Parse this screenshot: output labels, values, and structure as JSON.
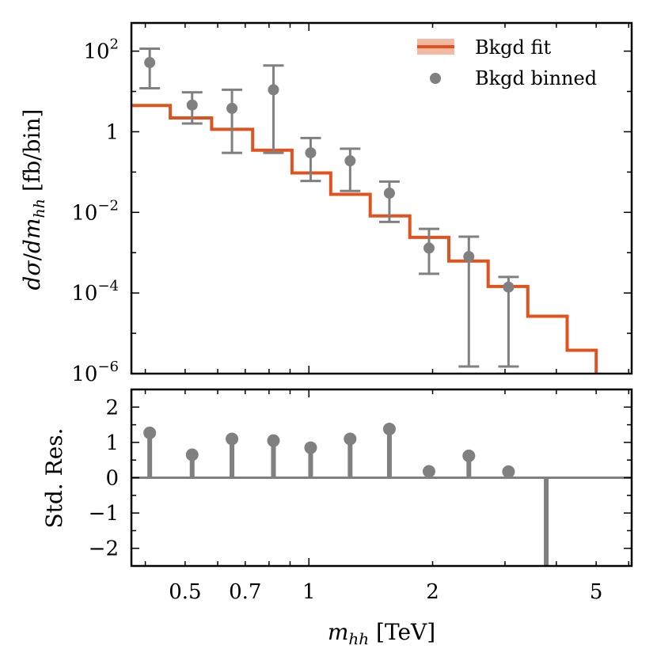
{
  "chart_data": [
    {
      "type": "step+errorbar",
      "panel": "upper",
      "ylabel_parts": [
        "d",
        "σ",
        "/",
        "d",
        "m",
        "hh",
        " [fb/bin]"
      ],
      "yscale": "log",
      "xscale": "log",
      "xlim": [
        0.37,
        6.1
      ],
      "ylim": [
        1e-06,
        500
      ],
      "yticks": [
        {
          "value": 100,
          "base": "10",
          "exp": "2"
        },
        {
          "value": 1,
          "base": "1",
          "exp": ""
        },
        {
          "value": 0.01,
          "base": "10",
          "exp": "−2"
        },
        {
          "value": 0.0001,
          "base": "10",
          "exp": "−4"
        },
        {
          "value": 1e-06,
          "base": "10",
          "exp": "−6"
        }
      ],
      "legend": {
        "position": "top-right",
        "entries": [
          {
            "label": "Bkgd fit",
            "kind": "line"
          },
          {
            "label": "Bkgd binned",
            "kind": "marker"
          }
        ]
      },
      "series": [
        {
          "name": "Bkgd fit",
          "kind": "step",
          "color": "#e0531f",
          "band_color": "#f4b9a3",
          "edges": [
            0.37,
            0.46,
            0.58,
            0.73,
            0.91,
            1.13,
            1.41,
            1.76,
            2.19,
            2.73,
            3.41,
            4.25,
            5.0
          ],
          "values": [
            4.5,
            2.2,
            1.15,
            0.35,
            0.095,
            0.028,
            0.0082,
            0.0024,
            0.00062,
            0.000145,
            2.65e-05,
            3.8e-06
          ]
        },
        {
          "name": "Bkgd binned",
          "kind": "errorbar",
          "color": "#808080",
          "points": [
            {
              "x": 0.41,
              "y": 52,
              "lo": 12,
              "hi": 115
            },
            {
              "x": 0.52,
              "y": 4.6,
              "lo": 1.6,
              "hi": 9.5
            },
            {
              "x": 0.65,
              "y": 3.8,
              "lo": 0.3,
              "hi": 11
            },
            {
              "x": 0.82,
              "y": 11,
              "lo": 0.3,
              "hi": 44
            },
            {
              "x": 1.01,
              "y": 0.3,
              "lo": 0.06,
              "hi": 0.7
            },
            {
              "x": 1.26,
              "y": 0.19,
              "lo": 0.034,
              "hi": 0.38
            },
            {
              "x": 1.57,
              "y": 0.03,
              "lo": 0.0058,
              "hi": 0.058
            },
            {
              "x": 1.96,
              "y": 0.0013,
              "lo": 0.0003,
              "hi": 0.0039
            },
            {
              "x": 2.45,
              "y": 0.0008,
              "lo": 1.5e-06,
              "hi": 0.0025
            },
            {
              "x": 3.06,
              "y": 0.00014,
              "lo": 1.5e-06,
              "hi": 0.00025
            }
          ]
        }
      ]
    },
    {
      "type": "stem",
      "panel": "lower",
      "ylabel": "Std. Res.",
      "xlabel_parts": [
        "m",
        "hh",
        " [TeV]"
      ],
      "xscale": "log",
      "xlim": [
        0.37,
        6.1
      ],
      "ylim": [
        -2.5,
        2.5
      ],
      "xticks": [
        {
          "value": 0.5,
          "label": "0.5"
        },
        {
          "value": 0.7,
          "label": "0.7"
        },
        {
          "value": 1,
          "label": "1"
        },
        {
          "value": 2,
          "label": "2"
        },
        {
          "value": 5,
          "label": "5"
        }
      ],
      "yticks": [
        {
          "value": 2,
          "label": "2"
        },
        {
          "value": 1,
          "label": "1"
        },
        {
          "value": 0,
          "label": "0"
        },
        {
          "value": -1,
          "label": "−1"
        },
        {
          "value": -2,
          "label": "−2"
        }
      ],
      "color": "#808080",
      "points": [
        {
          "x": 0.41,
          "y": 1.27,
          "marker": true
        },
        {
          "x": 0.52,
          "y": 0.65,
          "marker": true
        },
        {
          "x": 0.65,
          "y": 1.1,
          "marker": true
        },
        {
          "x": 0.82,
          "y": 1.05,
          "marker": true
        },
        {
          "x": 1.01,
          "y": 0.85,
          "marker": true
        },
        {
          "x": 1.26,
          "y": 1.1,
          "marker": true
        },
        {
          "x": 1.57,
          "y": 1.38,
          "marker": true
        },
        {
          "x": 1.96,
          "y": 0.18,
          "marker": true
        },
        {
          "x": 2.45,
          "y": 0.62,
          "marker": true
        },
        {
          "x": 3.06,
          "y": 0.17,
          "marker": true
        },
        {
          "x": 3.78,
          "y": -2.5,
          "marker": false
        }
      ]
    }
  ]
}
